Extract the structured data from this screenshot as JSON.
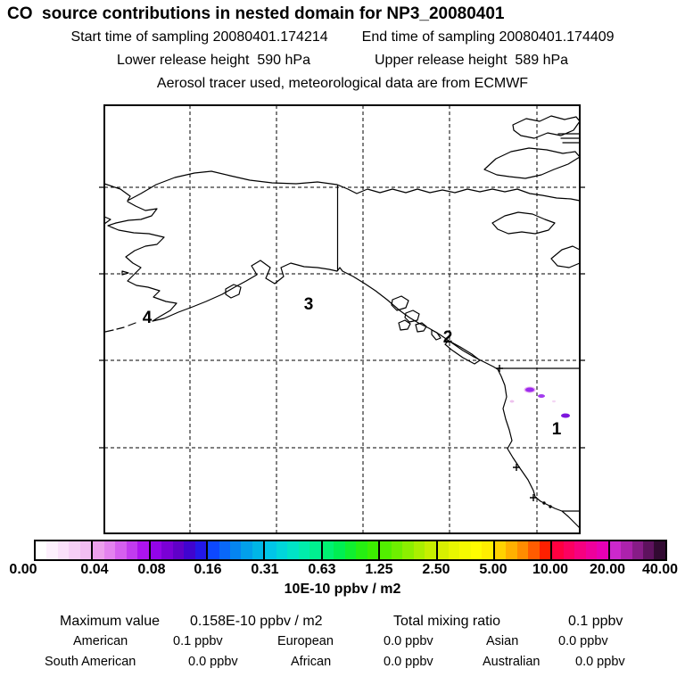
{
  "header": {
    "title": "CO  source contributions in nested domain for NP3_20080401",
    "start_time": "Start time of sampling 20080401.174214",
    "end_time": "End time of sampling 20080401.174409",
    "lower_release": "Lower release height  590 hPa",
    "upper_release": "Upper release height  589 hPa",
    "tracer_line": "Aerosol tracer used, meteorological data are from ECMWF"
  },
  "map": {
    "region_labels": [
      "1",
      "2",
      "3",
      "4"
    ],
    "plume_colors": [
      "#e9aef0",
      "#9b2bee",
      "#a23bee",
      "#7d15dd",
      "#eec2ee",
      "#f4d6f4"
    ],
    "line_color": "#000000"
  },
  "colorbar": {
    "tick_labels": [
      "0.00",
      "0.04",
      "0.08",
      "0.16",
      "0.31",
      "0.63",
      "1.25",
      "2.50",
      "5.00",
      "10.00",
      "20.00",
      "40.00"
    ],
    "unit_label": "10E-10 ppbv / m2",
    "segments": [
      [
        "#ffffff",
        "#fdf0fd",
        "#fae0fa",
        "#f6cff6",
        "#f1bdf1"
      ],
      [
        "#ec9fec",
        "#e382ee",
        "#d55fee",
        "#c23bee",
        "#ad14ee"
      ],
      [
        "#9304e8",
        "#7a00d6",
        "#6000c8",
        "#4004cf",
        "#2318e8"
      ],
      [
        "#0d48ff",
        "#0968f8",
        "#0585f0",
        "#02a0ea",
        "#00b6e6"
      ],
      [
        "#00c6e8",
        "#00d6da",
        "#00e3c6",
        "#00ecac",
        "#00f090"
      ],
      [
        "#00f072",
        "#00ee52",
        "#10ee30",
        "#26ee12",
        "#3cee00"
      ],
      [
        "#52ee00",
        "#6eee00",
        "#8cee00",
        "#aaee00",
        "#c6ee00"
      ],
      [
        "#d8f000",
        "#e8f600",
        "#f6fa00",
        "#fffc00",
        "#ffee00"
      ],
      [
        "#ffd200",
        "#ffb000",
        "#ff8c00",
        "#ff5c00",
        "#ff2000"
      ],
      [
        "#ff0040",
        "#fc0060",
        "#f60080",
        "#ee009c",
        "#e600b4"
      ],
      [
        "#cc28cc",
        "#ac22ac",
        "#871c87",
        "#5e125e",
        "#320a32"
      ]
    ]
  },
  "stats": {
    "max_label": "Maximum value",
    "max_value": "0.158E-10 ppbv / m2",
    "total_label": "Total mixing ratio",
    "total_value": "0.1 ppbv",
    "regions": [
      {
        "name": "American",
        "value": "0.1 ppbv"
      },
      {
        "name": "European",
        "value": "0.0 ppbv"
      },
      {
        "name": "Asian",
        "value": "0.0 ppbv"
      },
      {
        "name": "South American",
        "value": "0.0 ppbv"
      },
      {
        "name": "African",
        "value": "0.0 ppbv"
      },
      {
        "name": "Australian",
        "value": "0.0 ppbv"
      }
    ]
  }
}
